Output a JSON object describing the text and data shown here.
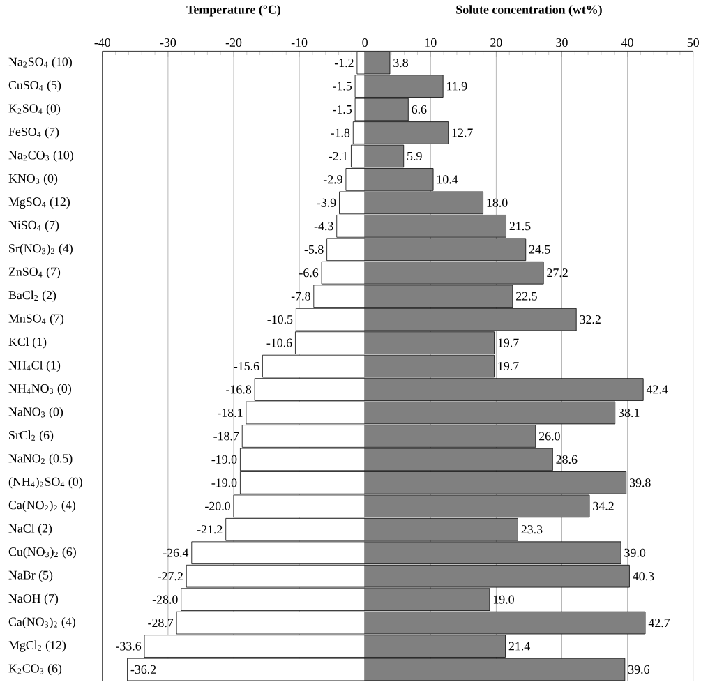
{
  "chart_data": {
    "type": "bar",
    "orientation": "horizontal",
    "stacked": true,
    "annotations": [
      "Temperature (°C)",
      "Solute concentration (wt%)"
    ],
    "categories": [
      "Na$_{2}$SO$_{4}$ (10)",
      "CuSO$_{4}$ (5)",
      "K$_{2}$SO$_{4}$ (0)",
      "FeSO$_{4}$ (7)",
      "Na$_{2}$CO$_{3}$ (10)",
      "KNO$_{3}$ (0)",
      "MgSO$_{4}$ (12)",
      "NiSO$_{4}$ (7)",
      "Sr(NO$_{3}$)$_{2}$ (4)",
      "ZnSO$_{4}$ (7)",
      "BaCl$_{2}$ (2)",
      "MnSO$_{4}$ (7)",
      "KCl (1)",
      "NH$_{4}$Cl (1)",
      "NH$_{4}$NO$_{3}$ (0)",
      "NaNO$_{3}$ (0)",
      "SrCl$_{2}$ (6)",
      "NaNO$_{2}$ (0.5)",
      "(NH$_{4}$)$_{2}$SO$_{4}$ (0)",
      "Ca(NO$_{2}$)$_{2}$ (4)",
      "NaCl (2)",
      "Cu(NO$_{3}$)$_{2}$ (6)",
      "NaBr (5)",
      "NaOH (7)",
      "Ca(NO$_{3}$)$_{2}$ (4)",
      "MgCl$_{2}$ (12)",
      "K$_{2}$CO$_{3}$ (6)"
    ],
    "series": [
      {
        "color": "#ffffff",
        "values": [
          -1.2,
          -1.5,
          -1.5,
          -1.8,
          -2.1,
          -2.9,
          -3.9,
          -4.3,
          -5.8,
          -6.6,
          -7.8,
          -10.5,
          -10.6,
          -15.6,
          -16.8,
          -18.1,
          -18.7,
          -19.0,
          -19.0,
          -20.0,
          -21.2,
          -26.4,
          -27.2,
          -28.0,
          -28.7,
          -33.6,
          -36.2
        ],
        "value_labels": [
          "-1.2",
          "-1.5",
          "-1.5",
          "-1.8",
          "-2.1",
          "-2.9",
          "-3.9",
          "-4.3",
          "-5.8",
          "-6.6",
          "-7.8",
          "-10.5",
          "-10.6",
          "-15.6",
          "-16.8",
          "-18.1",
          "-18.7",
          "-19.0",
          "-19.0",
          "-20.0",
          "-21.2",
          "-26.4",
          "-27.2",
          "-28.0",
          "-28.7",
          "-33.6",
          "-36.2"
        ]
      },
      {
        "color": "#808080",
        "values": [
          3.8,
          11.9,
          6.6,
          12.7,
          5.9,
          10.4,
          18.0,
          21.5,
          24.5,
          27.2,
          22.5,
          32.2,
          19.7,
          19.7,
          42.4,
          38.1,
          26.0,
          28.6,
          39.8,
          34.2,
          23.3,
          39.0,
          40.3,
          19.0,
          42.7,
          21.4,
          39.6
        ],
        "value_labels": [
          "3.8",
          "11.9",
          "6.6",
          "12.7",
          "5.9",
          "10.4",
          "18.0",
          "21.5",
          "24.5",
          "27.2",
          "22.5",
          "32.2",
          "19.7",
          "19.7",
          "42.4",
          "38.1",
          "26.0",
          "28.6",
          "39.8",
          "34.2",
          "23.3",
          "39.0",
          "40.3",
          "19.0",
          "42.7",
          "21.4",
          "39.6"
        ]
      }
    ],
    "xlim": [
      -40,
      50
    ],
    "xticks": [
      -40,
      -30,
      -20,
      -10,
      0,
      10,
      20,
      30,
      40,
      50
    ],
    "grid": "x"
  }
}
